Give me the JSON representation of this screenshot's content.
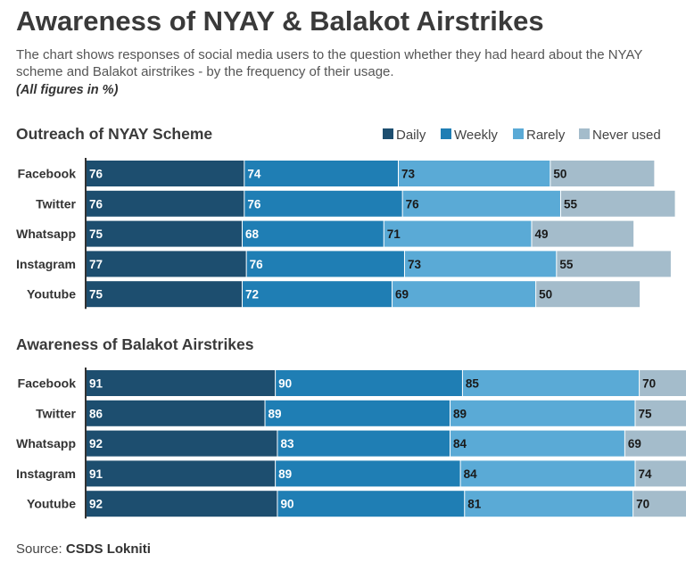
{
  "header": {
    "title": "Awareness of NYAY & Balakot Airstrikes",
    "subtitle": "The chart shows responses of social media users to the question whether they had heard about the NYAY scheme and Balakot airstrikes - by the frequency of their usage.",
    "note": "(All figures in %)"
  },
  "source": {
    "label": "Source:",
    "name": "CSDS Lokniti"
  },
  "colors": {
    "Daily": "#1d4e6f",
    "Weekly": "#1f7eb4",
    "Rarely": "#5aaad6",
    "Never used": "#a4bccb"
  },
  "chart_data": [
    {
      "type": "bar",
      "stacked": true,
      "orientation": "horizontal",
      "title": "Outreach of NYAY Scheme",
      "categories": [
        "Facebook",
        "Twitter",
        "Whatsapp",
        "Instagram",
        "Youtube"
      ],
      "series": [
        {
          "name": "Daily",
          "values": [
            76,
            76,
            75,
            77,
            75
          ]
        },
        {
          "name": "Weekly",
          "values": [
            74,
            76,
            68,
            76,
            72
          ]
        },
        {
          "name": "Rarely",
          "values": [
            73,
            76,
            71,
            73,
            69
          ]
        },
        {
          "name": "Never used",
          "values": [
            50,
            55,
            49,
            55,
            50
          ]
        }
      ],
      "legend": "top-right"
    },
    {
      "type": "bar",
      "stacked": true,
      "orientation": "horizontal",
      "title": "Awareness of Balakot Airstrikes",
      "categories": [
        "Facebook",
        "Twitter",
        "Whatsapp",
        "Instagram",
        "Youtube"
      ],
      "series": [
        {
          "name": "Daily",
          "values": [
            91,
            86,
            92,
            91,
            92
          ]
        },
        {
          "name": "Weekly",
          "values": [
            90,
            89,
            83,
            89,
            90
          ]
        },
        {
          "name": "Rarely",
          "values": [
            85,
            89,
            84,
            84,
            81
          ]
        },
        {
          "name": "Never used",
          "values": [
            70,
            75,
            69,
            74,
            70
          ]
        }
      ]
    }
  ]
}
